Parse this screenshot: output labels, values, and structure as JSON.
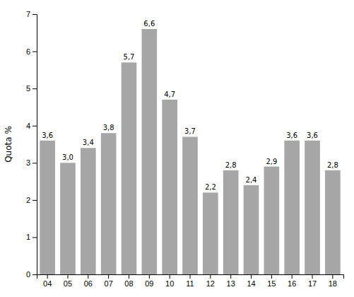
{
  "chart_data": {
    "type": "bar",
    "categories": [
      "04",
      "05",
      "06",
      "07",
      "08",
      "09",
      "10",
      "11",
      "12",
      "13",
      "14",
      "15",
      "16",
      "17",
      "18"
    ],
    "values": [
      3.6,
      3.0,
      3.4,
      3.8,
      5.7,
      6.6,
      4.7,
      3.7,
      2.2,
      2.8,
      2.4,
      2.9,
      3.6,
      3.6,
      2.8
    ],
    "value_labels": [
      "3,6",
      "3,0",
      "3,4",
      "3,8",
      "5,7",
      "6,6",
      "4,7",
      "3,7",
      "2,2",
      "2,8",
      "2,4",
      "2,9",
      "3,6",
      "3,6",
      "2,8"
    ],
    "data_labels": true,
    "color": "#a6a6a6",
    "ylabel": "Quota %",
    "ylim": [
      0,
      7
    ],
    "yticks": [
      0,
      1,
      2,
      3,
      4,
      5,
      6,
      7
    ],
    "grid": false
  }
}
